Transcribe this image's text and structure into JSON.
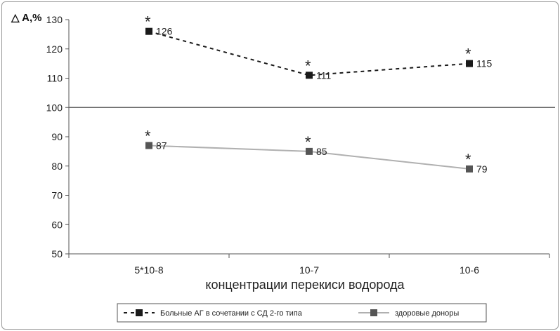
{
  "chart_data": {
    "type": "line",
    "ylabel": "△ A,%",
    "xlabel": "концентрации перекиси водорода",
    "categories": [
      "5*10-8",
      "10-7",
      "10-6"
    ],
    "ylim": [
      50,
      130
    ],
    "yticks": [
      "50",
      "60",
      "70",
      "80",
      "90",
      "100",
      "110",
      "120",
      "130"
    ],
    "reference_line": 100,
    "grid": false,
    "legend_position": "bottom",
    "significance_marker": "*",
    "series": [
      {
        "name": "Больные АГ в сочетании с СД 2-го типа",
        "values": [
          126,
          111,
          115
        ],
        "value_labels": [
          "126",
          "111",
          "115"
        ],
        "style": "dashed",
        "color": "#1a1a1a",
        "significant": [
          true,
          true,
          true
        ]
      },
      {
        "name": "здоровые доноры",
        "values": [
          87,
          85,
          79
        ],
        "value_labels": [
          "87",
          "85",
          "79"
        ],
        "style": "solid",
        "color": "#555555",
        "line_color": "#b0b0b0",
        "significant": [
          true,
          true,
          true
        ]
      }
    ],
    "colors": {
      "axis": "#555555",
      "reference": "#666666",
      "text": "#222222"
    }
  }
}
